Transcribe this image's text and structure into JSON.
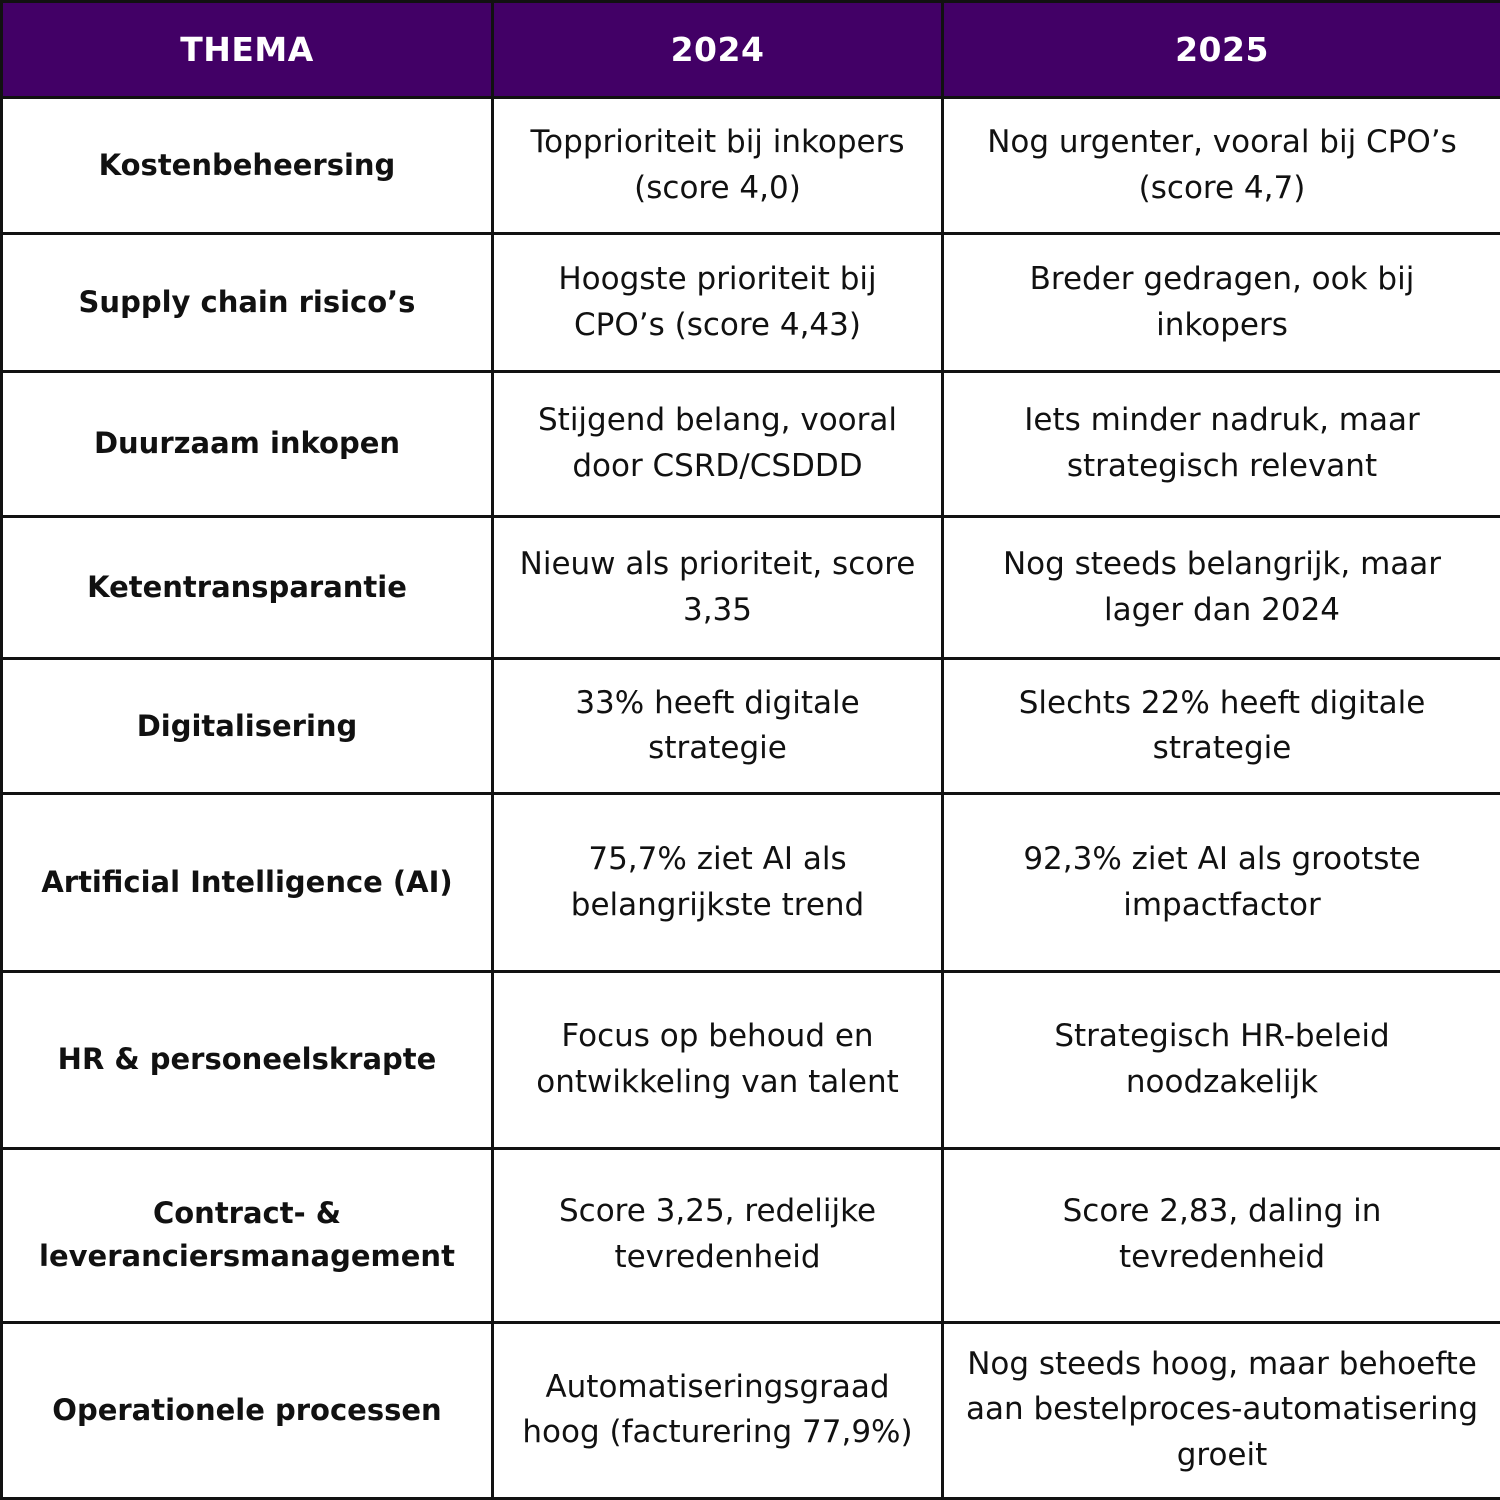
{
  "table": {
    "headers": [
      "THEMA",
      "2024",
      "2025"
    ],
    "rows": [
      {
        "thema": "Kostenbeheersing",
        "y2024": "Topprioriteit bij inkopers (score 4,0)",
        "y2025": "Nog urgenter, vooral bij CPO’s (score 4,7)"
      },
      {
        "thema": "Supply chain risico’s",
        "y2024": "Hoogste prioriteit bij CPO’s (score 4,43)",
        "y2025": "Breder gedragen, ook bij inkopers"
      },
      {
        "thema": "Duurzaam inkopen",
        "y2024": "Stijgend belang, vooral door CSRD/CSDDD",
        "y2025": "Iets minder nadruk, maar strategisch relevant"
      },
      {
        "thema": "Ketentransparantie",
        "y2024": "Nieuw als prioriteit, score 3,35",
        "y2025": "Nog steeds belangrijk, maar lager dan 2024"
      },
      {
        "thema": "Digitalisering",
        "y2024": "33% heeft digitale strategie",
        "y2025": "Slechts 22% heeft digitale strategie"
      },
      {
        "thema": "Artificial Intelligence (AI)",
        "y2024": "75,7% ziet AI als belangrijkste trend",
        "y2025": "92,3% ziet AI als grootste impactfactor"
      },
      {
        "thema": "HR & personeelskrapte",
        "y2024": "Focus op behoud en ontwikkeling van talent",
        "y2025": "Strategisch HR-beleid noodzakelijk"
      },
      {
        "thema": "Contract- & leveranciersmanagement",
        "y2024": "Score 3,25, redelijke tevredenheid",
        "y2025": "Score 2,83, daling in tevredenheid"
      },
      {
        "thema": "Operationele processen",
        "y2024": "Automatiseringsgraad hoog (facturering 77,9%)",
        "y2025": "Nog steeds hoog, maar behoefte aan bestelproces-automatisering groeit"
      }
    ]
  },
  "colors": {
    "header_bg": "#420066",
    "header_text": "#ffffff",
    "border": "#111111",
    "body_text": "#111111"
  }
}
